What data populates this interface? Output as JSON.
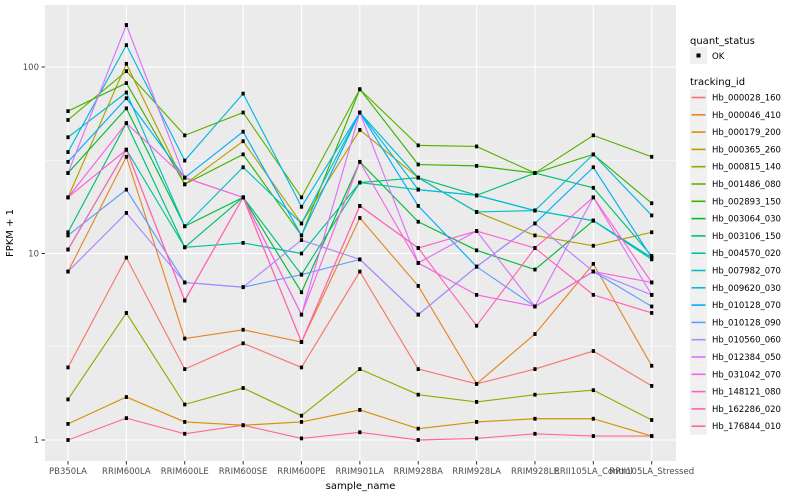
{
  "chart_data": {
    "type": "line",
    "title": "",
    "xlabel": "sample_name",
    "ylabel": "FPKM + 1",
    "y_scale": "log10",
    "y_ticks": [
      1,
      10,
      100
    ],
    "y_tick_labels": [
      "1",
      "10",
      "100"
    ],
    "y_minor_ticks": [
      3.162,
      31.62
    ],
    "ylim": [
      0.78,
      215
    ],
    "grid": true,
    "legend_position": "right",
    "categories": [
      "PB350LA",
      "RRIM600LA",
      "RRIM600LE",
      "RRIM600SE",
      "RRIM600PE",
      "RRIM901LA",
      "RRIM928BA",
      "RRIM928LA",
      "RRIM928LE",
      "RRII105LA_Control",
      "RRII105LA_Stressed"
    ],
    "series": [
      {
        "name": "Hb_000028_160",
        "color": "#F8766D",
        "values": [
          2.45,
          9.5,
          2.4,
          3.3,
          2.45,
          8,
          2.4,
          2.0,
          2.4,
          3.0,
          1.95
        ]
      },
      {
        "name": "Hb_000046_410",
        "color": "#E88526",
        "values": [
          8,
          33,
          3.5,
          3.9,
          3.35,
          15.5,
          6.7,
          2.0,
          3.7,
          8.8,
          2.5
        ]
      },
      {
        "name": "Hb_000179_200",
        "color": "#D39200",
        "values": [
          1.22,
          1.7,
          1.25,
          1.2,
          1.25,
          1.45,
          1.15,
          1.25,
          1.3,
          1.3,
          1.05
        ]
      },
      {
        "name": "Hb_000365_260",
        "color": "#B79F00",
        "values": [
          20,
          104,
          23.5,
          40,
          14.5,
          46,
          25.5,
          16.7,
          12.5,
          11,
          13
        ]
      },
      {
        "name": "Hb_000815_140",
        "color": "#93AA00",
        "values": [
          1.65,
          4.8,
          1.55,
          1.9,
          1.35,
          2.4,
          1.75,
          1.6,
          1.75,
          1.85,
          1.28
        ]
      },
      {
        "name": "Hb_001486_080",
        "color": "#5EB300",
        "values": [
          52,
          95,
          43,
          57,
          20,
          76,
          38,
          37.5,
          27,
          43,
          33
        ]
      },
      {
        "name": "Hb_002893_150",
        "color": "#39B600",
        "values": [
          58,
          82,
          23.5,
          34,
          12.5,
          76,
          30,
          29.5,
          27,
          34,
          18.6
        ]
      },
      {
        "name": "Hb_003064_030",
        "color": "#00BA38",
        "values": [
          27,
          60,
          14,
          20,
          6.2,
          31,
          14.8,
          10.4,
          8.2,
          15,
          9.5
        ]
      },
      {
        "name": "Hb_003106_150",
        "color": "#00BF74",
        "values": [
          13,
          50,
          10.8,
          20,
          7.7,
          24,
          25.5,
          20.5,
          27,
          22.5,
          9.7
        ]
      },
      {
        "name": "Hb_004570_020",
        "color": "#00C19F",
        "values": [
          10.5,
          36,
          10.8,
          11.4,
          10,
          24,
          22,
          20.5,
          17,
          15,
          9.3
        ]
      },
      {
        "name": "Hb_007982_070",
        "color": "#00BFC4",
        "values": [
          42,
          73,
          14,
          29,
          14.5,
          57,
          25.5,
          16.7,
          17,
          15,
          9.5
        ]
      },
      {
        "name": "Hb_009620_030",
        "color": "#00B9E3",
        "values": [
          35,
          131,
          31.5,
          72,
          17.8,
          57,
          22,
          20.5,
          17,
          34,
          16
        ]
      },
      {
        "name": "Hb_010128_070",
        "color": "#00ADFA",
        "values": [
          31,
          68,
          25.5,
          45,
          12.5,
          57,
          18,
          8.5,
          14.5,
          29,
          9.5
        ]
      },
      {
        "name": "Hb_010128_090",
        "color": "#619CFF",
        "values": [
          12.5,
          22,
          7,
          6.6,
          7.7,
          9.3,
          4.7,
          8.5,
          5.2,
          8,
          5.2
        ]
      },
      {
        "name": "Hb_010560_060",
        "color": "#AE87FF",
        "values": [
          8,
          16.5,
          7,
          6.6,
          11.8,
          9.3,
          4.7,
          8.5,
          14.5,
          8,
          6
        ]
      },
      {
        "name": "Hb_012384_050",
        "color": "#DB72FB",
        "values": [
          27,
          168,
          25.5,
          20,
          4.7,
          57,
          8.9,
          13.2,
          5.2,
          20,
          6
        ]
      },
      {
        "name": "Hb_031042_070",
        "color": "#F564E3",
        "values": [
          20,
          50,
          25.5,
          20,
          4.7,
          31,
          8.9,
          6,
          5.2,
          8,
          7
        ]
      },
      {
        "name": "Hb_148121_080",
        "color": "#FD61D1",
        "values": [
          20,
          36,
          5.6,
          20,
          3.35,
          18,
          10.7,
          13.2,
          10.7,
          20,
          7
        ]
      },
      {
        "name": "Hb_162286_020",
        "color": "#FF64B0",
        "values": [
          10.5,
          36,
          5.6,
          20,
          3.35,
          18,
          10.7,
          4.1,
          10.7,
          6,
          4.8
        ]
      },
      {
        "name": "Hb_176844_010",
        "color": "#FF6993",
        "values": [
          1.0,
          1.31,
          1.08,
          1.2,
          1.02,
          1.1,
          1.0,
          1.02,
          1.08,
          1.05,
          1.05
        ]
      }
    ],
    "legend": {
      "quant_status_title": "quant_status",
      "quant_status_items": [
        "OK"
      ],
      "tracking_title": "tracking_id"
    },
    "style": {
      "panel_background": "#EBEBEB",
      "grid_color": "#FFFFFF",
      "point_color": "#000000",
      "tick_color": "#333333",
      "tick_label_color": "#4D4D4D",
      "legend_key_fill": "#F0F0F0"
    }
  }
}
